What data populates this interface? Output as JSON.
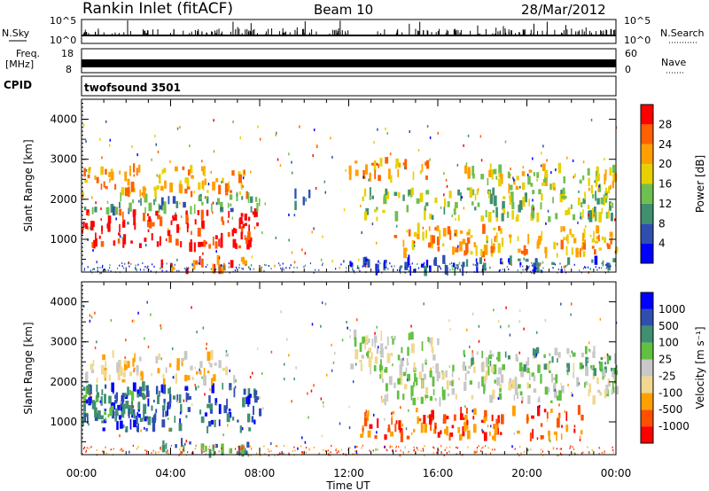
{
  "header": {
    "title": "Rankin Inlet (fitACF)",
    "beam": "Beam 10",
    "date": "28/Mar/2012"
  },
  "top_panels": {
    "nsky_label": "N.Sky",
    "nsky_ticks": [
      "10^5",
      "10^0"
    ],
    "nsearch_label": "N.Search",
    "nsearch_ticks": [
      "10^5",
      "10^0"
    ],
    "freq_label": "Freq.",
    "freq_unit": "[MHz]",
    "freq_ticks": [
      "18",
      "8"
    ],
    "nave_label": "Nave",
    "nave_ticks": [
      "60",
      "0"
    ],
    "cpid_label": "CPID",
    "cpid_value": "twofsound 3501"
  },
  "colors": {
    "power": [
      "#0000ff",
      "#2f4fb0",
      "#3f8f70",
      "#6fbf4f",
      "#e8d000",
      "#ffa000",
      "#ff6000",
      "#ff0000"
    ],
    "velocity": [
      "#ff0000",
      "#ff5000",
      "#ffa000",
      "#f0d890",
      "#c8c8c8",
      "#60c040",
      "#3f8f70",
      "#2f4fb0",
      "#0000ff"
    ]
  },
  "chart_data": [
    {
      "type": "heatmap",
      "name": "power",
      "ylabel": "Slant Range [km]",
      "xlabel": "Time UT",
      "y_ticks": [
        "1000",
        "2000",
        "3000",
        "4000"
      ],
      "ylim": [
        180,
        4500
      ],
      "x_ticks": [
        "00:00",
        "04:00",
        "08:00",
        "12:00",
        "16:00",
        "20:00",
        "00:00"
      ],
      "colorbar_label": "Power [dB]",
      "colorbar_ticks": [
        "4",
        "8",
        "12",
        "16",
        "20",
        "24",
        "28"
      ],
      "bands": [
        {
          "t0": 0.0,
          "t1": 8.0,
          "r0": 800,
          "r1": 1700,
          "level": 7
        },
        {
          "t0": 0.0,
          "t1": 8.0,
          "r0": 1700,
          "r1": 2100,
          "level": 2
        },
        {
          "t0": 0.0,
          "t1": 7.5,
          "r0": 2100,
          "r1": 2800,
          "level": 5
        },
        {
          "t0": 3.5,
          "t1": 8.0,
          "r0": 200,
          "r1": 500,
          "level": 6
        },
        {
          "t0": 9.5,
          "t1": 10.2,
          "r0": 1800,
          "r1": 2200,
          "level": 1
        },
        {
          "t0": 12.0,
          "t1": 15.5,
          "r0": 2500,
          "r1": 3000,
          "level": 5
        },
        {
          "t0": 12.5,
          "t1": 24.0,
          "r0": 1500,
          "r1": 2200,
          "level": 3
        },
        {
          "t0": 14.0,
          "t1": 24.0,
          "r0": 600,
          "r1": 1300,
          "level": 5
        },
        {
          "t0": 17.0,
          "t1": 24.0,
          "r0": 2200,
          "r1": 2800,
          "level": 4
        },
        {
          "t0": 12.0,
          "t1": 24.0,
          "r0": 200,
          "r1": 500,
          "level": 1
        }
      ]
    },
    {
      "type": "heatmap",
      "name": "velocity",
      "ylabel": "Slant Range [km]",
      "xlabel": "Time UT",
      "y_ticks": [
        "1000",
        "2000",
        "3000",
        "4000"
      ],
      "ylim": [
        180,
        4500
      ],
      "x_ticks": [
        "00:00",
        "04:00",
        "08:00",
        "12:00",
        "16:00",
        "20:00",
        "00:00"
      ],
      "colorbar_label": "Velocity [m s⁻¹]",
      "colorbar_ticks": [
        "1000",
        "500",
        "100",
        "25",
        "-25",
        "-100",
        "-500",
        "-1000"
      ],
      "bands": [
        {
          "t0": 0.0,
          "t1": 8.0,
          "r0": 800,
          "r1": 1900,
          "level": 7
        },
        {
          "t0": 0.0,
          "t1": 4.0,
          "r0": 1000,
          "r1": 1800,
          "level": 6
        },
        {
          "t0": 0.0,
          "t1": 7.0,
          "r0": 2000,
          "r1": 2700,
          "level": 3
        },
        {
          "t0": 3.5,
          "t1": 8.0,
          "r0": 200,
          "r1": 500,
          "level": 6
        },
        {
          "t0": 12.0,
          "t1": 16.0,
          "r0": 2300,
          "r1": 3200,
          "level": 4
        },
        {
          "t0": 13.0,
          "t1": 24.0,
          "r0": 1500,
          "r1": 2400,
          "level": 4
        },
        {
          "t0": 12.5,
          "t1": 22.5,
          "r0": 600,
          "r1": 1300,
          "level": 1
        },
        {
          "t0": 17.0,
          "t1": 24.0,
          "r0": 2200,
          "r1": 2800,
          "level": 5
        }
      ]
    }
  ]
}
